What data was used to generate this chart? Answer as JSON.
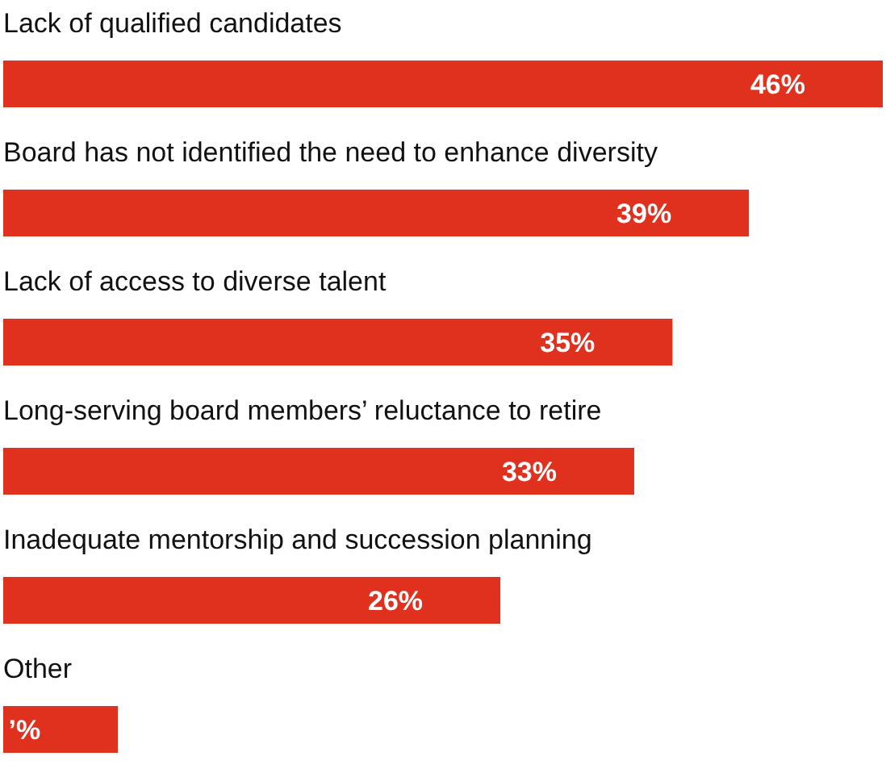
{
  "chart_data": {
    "type": "bar",
    "orientation": "horizontal",
    "categories": [
      "Lack of qualified candidates",
      "Board has not identified the need to enhance diversity",
      "Lack of access to diverse talent",
      "Long-serving board members’ reluctance to retire",
      "Inadequate mentorship and succession planning",
      "Other"
    ],
    "values": [
      46,
      39,
      35,
      33,
      26,
      6
    ],
    "value_labels": [
      "46%",
      "39%",
      "35%",
      "33%",
      "26%",
      "’%"
    ],
    "color": "#e0311f"
  }
}
